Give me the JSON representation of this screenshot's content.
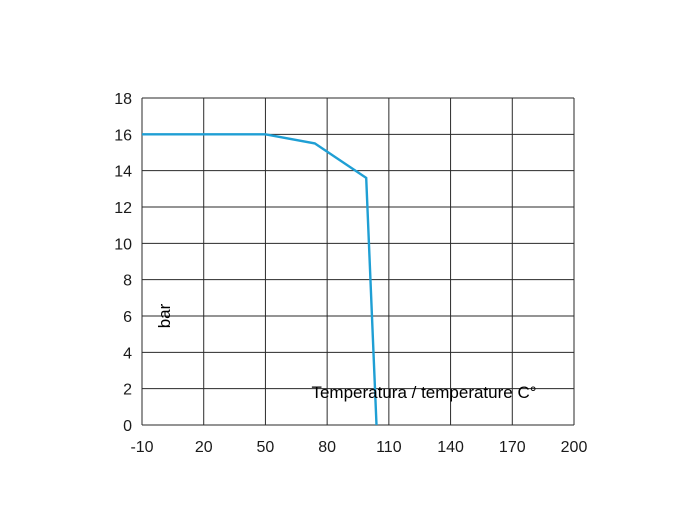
{
  "chart_data": {
    "type": "line",
    "title": "",
    "xlabel": "Temperatura / temperature C°",
    "ylabel": "bar",
    "x_tick_labels": [
      "-10",
      "20",
      "50",
      "80",
      "110",
      "140",
      "170",
      "200"
    ],
    "y_tick_labels": [
      "0",
      "2",
      "4",
      "6",
      "8",
      "10",
      "12",
      "14",
      "16",
      "18"
    ],
    "xlim": [
      -10,
      200
    ],
    "ylim": [
      0,
      18
    ],
    "grid": true,
    "series": [
      {
        "color": "#1f9fd4",
        "x": [
          -10,
          50,
          74,
          99,
          104
        ],
        "y": [
          16,
          16,
          15.5,
          13.6,
          0
        ]
      }
    ]
  }
}
